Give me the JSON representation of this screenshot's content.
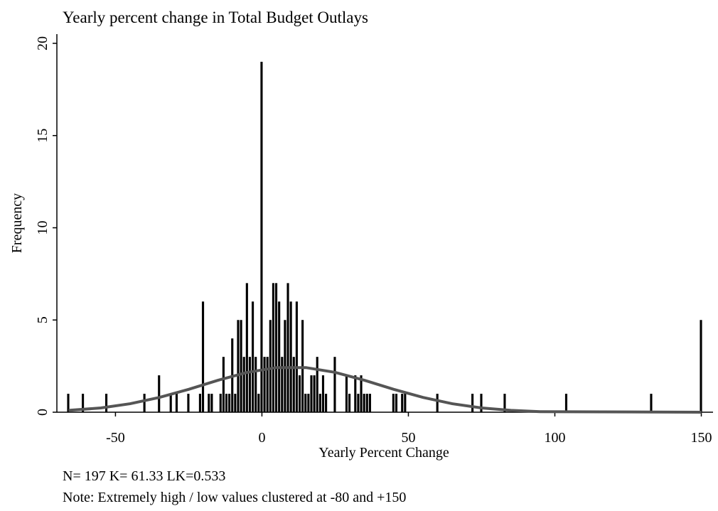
{
  "chart_data": {
    "type": "histogram",
    "title": "Yearly percent change in Total Budget Outlays",
    "xlabel": "Yearly Percent Change",
    "ylabel": "Frequency",
    "notes": [
      "N= 197 K= 61.33 LK=0.533",
      "Note: Extremely high / low values clustered at -80 and +150"
    ],
    "color": "#000000",
    "bins": [
      -66.5,
      -65.5,
      -61.5,
      -60.5,
      -53.5,
      -52.5,
      -40.5,
      -39.5,
      -35.5,
      -34.5,
      -31.5,
      -30.5,
      -29.5,
      -28.5,
      -25.5,
      -24.5,
      -21.5,
      -20.5,
      -19.5,
      -18.5,
      -17.5,
      -16.5,
      -14.5,
      -13.5,
      -12.5,
      -11.5,
      -10.5,
      -9.5,
      -8.5,
      -7.5,
      -6.5,
      -5.5,
      -4.5,
      -3.5,
      -2.5,
      -1.5,
      -0.5,
      0.5,
      1.5,
      2.5,
      3.5,
      4.5,
      5.5,
      6.5,
      7.5,
      8.5,
      9.5,
      10.5,
      11.5,
      12.5,
      13.5,
      14.5,
      15.5,
      16.5,
      17.5,
      18.5,
      19.5,
      20.5,
      21.5,
      22.5,
      24.5,
      25.5,
      28.5,
      29.5,
      30.5,
      31.5,
      32.5,
      33.5,
      34.5,
      35.5,
      36.5,
      37.5,
      44.5,
      45.5,
      46.5,
      47.5,
      48.5,
      49.5,
      59.5,
      60.5,
      71.5,
      72.5,
      74.5,
      75.5,
      82.5,
      83.5,
      103.5,
      104.5,
      132.5,
      133.5,
      149.5,
      150.5
    ],
    "values": [
      1,
      0,
      1,
      0,
      1,
      0,
      1,
      0,
      2,
      0,
      1,
      0,
      1,
      0,
      1,
      0,
      1,
      6,
      0,
      1,
      1,
      0,
      1,
      3,
      1,
      1,
      4,
      1,
      5,
      5,
      3,
      7,
      3,
      6,
      3,
      1,
      19,
      3,
      3,
      5,
      7,
      7,
      6,
      3,
      5,
      7,
      6,
      3,
      6,
      2,
      5,
      1,
      1,
      2,
      2,
      3,
      1,
      2,
      1,
      0,
      3,
      0,
      2,
      1,
      0,
      2,
      1,
      2,
      1,
      1,
      1,
      0,
      1,
      1,
      0,
      1,
      1,
      0,
      1,
      0,
      1,
      0,
      1,
      0,
      1,
      0,
      1,
      0,
      1,
      0,
      5
    ],
    "curve": {
      "color": "#555555",
      "x": [
        -66,
        -55,
        -45,
        -35,
        -25,
        -15,
        -5,
        5,
        15,
        25,
        35,
        45,
        55,
        65,
        75,
        85,
        95,
        150
      ],
      "values": [
        0.1,
        0.23,
        0.46,
        0.8,
        1.24,
        1.73,
        2.16,
        2.42,
        2.42,
        2.16,
        1.73,
        1.24,
        0.8,
        0.46,
        0.23,
        0.1,
        0.03,
        0
      ]
    },
    "xlim": [
      -70,
      154
    ],
    "ylim": [
      0,
      20.5
    ],
    "xticks": [
      -50,
      0,
      50,
      100,
      150
    ],
    "yticks": [
      0,
      5,
      10,
      15,
      20
    ]
  }
}
